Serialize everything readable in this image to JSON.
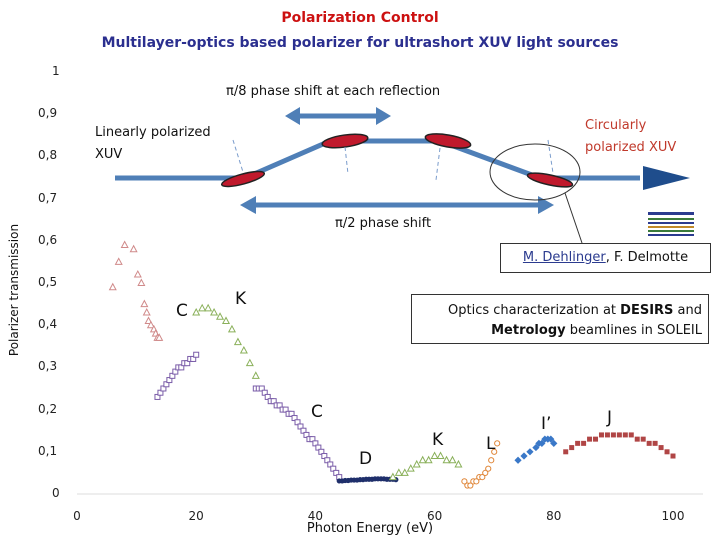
{
  "header": {
    "title": "Polarization Control",
    "subtitle": "Multilayer-optics based polarizer for ultrashort XUV light sources"
  },
  "diagram": {
    "phase_reflection": "π/8 phase shift at each reflection",
    "phase_total": "π/2 phase shift",
    "linear_label_1": "Linearly polarized",
    "linear_label_2": "XUV",
    "circular_label_1": "Circularly",
    "circular_label_2": "polarized XUV"
  },
  "authors": {
    "first": "M. Dehlinger",
    "sep": ", ",
    "second": "F. Delmotte"
  },
  "optics": {
    "line1_pre": "Optics characterization at ",
    "line1_bold": "DESIRS",
    "line1_post": " and",
    "line2_bold": "Metrology",
    "line2_post": " beamlines in SOLEIL"
  },
  "series_labels": [
    "K",
    "C",
    "C",
    "D",
    "K",
    "L",
    "I’",
    "J"
  ],
  "chart_data": {
    "type": "scatter",
    "title": "",
    "xlabel": "Photon Energy (eV)",
    "ylabel": "Polarizer transmission",
    "xlim": [
      0,
      100
    ],
    "ylim": [
      0,
      1
    ],
    "x_ticks": [
      "0",
      "20",
      "40",
      "60",
      "80",
      "100"
    ],
    "y_ticks": [
      "0",
      "0,1",
      "0,2",
      "0,3",
      "0,4",
      "0,5",
      "0,6",
      "0,7",
      "0,8",
      "0,9",
      "1"
    ],
    "grid": false,
    "series": [
      {
        "marker": "triangle-open",
        "color": "#d08a8a",
        "x": [
          6,
          7,
          8,
          9.5,
          10.2,
          10.8,
          11.3,
          11.7,
          12,
          12.4,
          12.9,
          13.2,
          13.5,
          13.8
        ],
        "y": [
          0.49,
          0.55,
          0.59,
          0.58,
          0.52,
          0.5,
          0.45,
          0.43,
          0.41,
          0.4,
          0.39,
          0.38,
          0.37,
          0.37
        ]
      },
      {
        "marker": "square-open",
        "color": "#7a5ca8",
        "x": [
          13.5,
          14,
          14.5,
          15,
          15.5,
          16,
          16.5,
          17,
          17.5,
          18,
          18.5,
          19,
          19.5,
          20
        ],
        "y": [
          0.23,
          0.24,
          0.25,
          0.26,
          0.27,
          0.28,
          0.29,
          0.3,
          0.3,
          0.31,
          0.31,
          0.32,
          0.32,
          0.33
        ]
      },
      {
        "marker": "triangle-open",
        "color": "#8ab05a",
        "x": [
          20,
          21,
          22,
          23,
          24,
          25,
          26,
          27,
          28,
          29,
          30
        ],
        "y": [
          0.43,
          0.44,
          0.44,
          0.43,
          0.42,
          0.41,
          0.39,
          0.36,
          0.34,
          0.31,
          0.28
        ]
      },
      {
        "marker": "square-open",
        "color": "#7a5ca8",
        "x": [
          30,
          30.5,
          31,
          31.5,
          32,
          32.5,
          33,
          33.5,
          34,
          34.5,
          35,
          35.5,
          36,
          36.5,
          37,
          37.5,
          38,
          38.5,
          39,
          39.5,
          40,
          40.5,
          41,
          41.5,
          42,
          42.5,
          43,
          43.5,
          44
        ],
        "y": [
          0.25,
          0.25,
          0.25,
          0.24,
          0.23,
          0.22,
          0.22,
          0.21,
          0.21,
          0.2,
          0.2,
          0.19,
          0.19,
          0.18,
          0.17,
          0.16,
          0.15,
          0.14,
          0.13,
          0.13,
          0.12,
          0.11,
          0.1,
          0.09,
          0.08,
          0.07,
          0.06,
          0.05,
          0.04
        ]
      },
      {
        "marker": "circle-filled",
        "color": "#1f2f6b",
        "x": [
          44,
          44.5,
          45,
          45.5,
          46,
          46.5,
          47,
          47.5,
          48,
          48.5,
          49,
          49.5,
          50,
          50.5,
          51,
          51.5,
          52,
          52.5,
          53,
          53.5
        ],
        "y": [
          0.031,
          0.031,
          0.032,
          0.032,
          0.033,
          0.033,
          0.033,
          0.034,
          0.034,
          0.035,
          0.035,
          0.035,
          0.036,
          0.036,
          0.036,
          0.036,
          0.035,
          0.035,
          0.035,
          0.034
        ]
      },
      {
        "marker": "triangle-open",
        "color": "#8ab05a",
        "x": [
          53,
          54,
          55,
          56,
          57,
          58,
          59,
          60,
          61,
          62,
          63,
          64
        ],
        "y": [
          0.04,
          0.05,
          0.05,
          0.06,
          0.07,
          0.08,
          0.08,
          0.09,
          0.09,
          0.08,
          0.08,
          0.07
        ]
      },
      {
        "marker": "circle-open",
        "color": "#e0873a",
        "x": [
          65,
          65.5,
          66,
          66.5,
          67,
          67.5,
          68,
          68.5,
          69,
          69.5,
          70,
          70.5
        ],
        "y": [
          0.03,
          0.02,
          0.02,
          0.03,
          0.03,
          0.04,
          0.04,
          0.05,
          0.06,
          0.08,
          0.1,
          0.12
        ]
      },
      {
        "marker": "diamond-filled",
        "color": "#3a78c8",
        "x": [
          74,
          75,
          76,
          77,
          77.5,
          78,
          78.5,
          79,
          79.5,
          80
        ],
        "y": [
          0.08,
          0.09,
          0.1,
          0.11,
          0.12,
          0.12,
          0.13,
          0.13,
          0.13,
          0.12
        ]
      },
      {
        "marker": "square-filled",
        "color": "#b04545",
        "x": [
          82,
          83,
          84,
          85,
          86,
          87,
          88,
          89,
          90,
          91,
          92,
          93,
          94,
          95,
          96,
          97,
          98,
          99,
          100
        ],
        "y": [
          0.1,
          0.11,
          0.12,
          0.12,
          0.13,
          0.13,
          0.14,
          0.14,
          0.14,
          0.14,
          0.14,
          0.14,
          0.13,
          0.13,
          0.12,
          0.12,
          0.11,
          0.1,
          0.09
        ]
      }
    ]
  }
}
